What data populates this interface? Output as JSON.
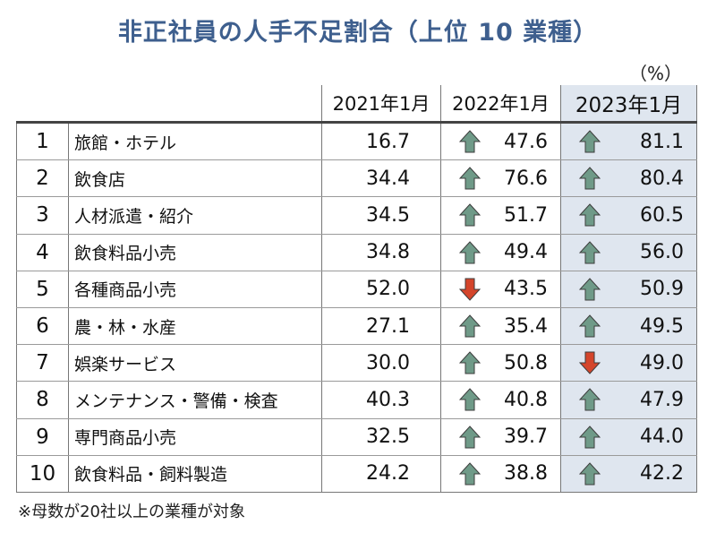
{
  "title": "非正社員の人手不足割合（上位 10 業種）",
  "unit": "（%）",
  "headers": {
    "y2021": "2021年1月",
    "y2022": "2022年1月",
    "y2023": "2023年1月"
  },
  "colors": {
    "title": "#3e5f8e",
    "highlight_column": "#dfe6ef",
    "arrow_up": "#6f9a88",
    "arrow_down": "#d4452b"
  },
  "rows": [
    {
      "rank": "1",
      "industry": "旅館・ホテル",
      "y2021": "16.7",
      "y2022": "47.6",
      "y2022_trend": "up",
      "y2023": "81.1",
      "y2023_trend": "up"
    },
    {
      "rank": "2",
      "industry": "飲食店",
      "y2021": "34.4",
      "y2022": "76.6",
      "y2022_trend": "up",
      "y2023": "80.4",
      "y2023_trend": "up"
    },
    {
      "rank": "3",
      "industry": "人材派遣・紹介",
      "y2021": "34.5",
      "y2022": "51.7",
      "y2022_trend": "up",
      "y2023": "60.5",
      "y2023_trend": "up"
    },
    {
      "rank": "4",
      "industry": "飲食料品小売",
      "y2021": "34.8",
      "y2022": "49.4",
      "y2022_trend": "up",
      "y2023": "56.0",
      "y2023_trend": "up"
    },
    {
      "rank": "5",
      "industry": "各種商品小売",
      "y2021": "52.0",
      "y2022": "43.5",
      "y2022_trend": "down",
      "y2023": "50.9",
      "y2023_trend": "up"
    },
    {
      "rank": "6",
      "industry": "農・林・水産",
      "y2021": "27.1",
      "y2022": "35.4",
      "y2022_trend": "up",
      "y2023": "49.5",
      "y2023_trend": "up"
    },
    {
      "rank": "7",
      "industry": "娯楽サービス",
      "y2021": "30.0",
      "y2022": "50.8",
      "y2022_trend": "up",
      "y2023": "49.0",
      "y2023_trend": "down"
    },
    {
      "rank": "8",
      "industry": "メンテナンス・警備・検査",
      "y2021": "40.3",
      "y2022": "40.8",
      "y2022_trend": "up",
      "y2023": "47.9",
      "y2023_trend": "up"
    },
    {
      "rank": "9",
      "industry": "専門商品小売",
      "y2021": "32.5",
      "y2022": "39.7",
      "y2022_trend": "up",
      "y2023": "44.0",
      "y2023_trend": "up"
    },
    {
      "rank": "10",
      "industry": "飲食料品・飼料製造",
      "y2021": "24.2",
      "y2022": "38.8",
      "y2022_trend": "up",
      "y2023": "42.2",
      "y2023_trend": "up"
    }
  ],
  "footnote": "※母数が20社以上の業種が対象"
}
